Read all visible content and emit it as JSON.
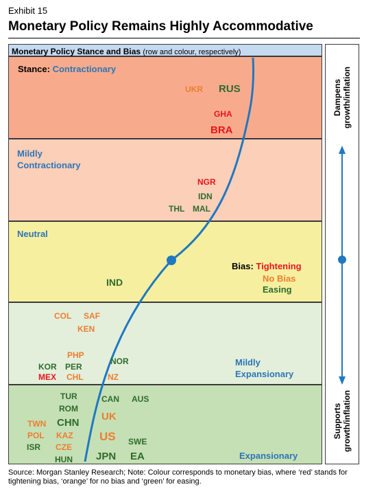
{
  "exhibit": "Exhibit 15",
  "title": "Monetary Policy Remains Highly Accommodative",
  "header": {
    "main": "Monetary Policy Stance and Bias",
    "sub": "(row and colour, respectively)"
  },
  "bands": {
    "contractionary": {
      "prefix": "Stance:",
      "label": "Contractionary"
    },
    "mildly_contractionary": {
      "line1": "Mildly",
      "line2": "Contractionary"
    },
    "neutral": {
      "label": "Neutral"
    },
    "mildly_expansionary": {
      "line1": "Mildly",
      "line2": "Expansionary"
    },
    "expansionary": {
      "label": "Expansionary"
    }
  },
  "legend": {
    "prefix": "Bias:",
    "tightening": "Tightening",
    "no_bias": "No Bias",
    "easing": "Easing"
  },
  "side": {
    "top": [
      "Dampens",
      "growth/inflation"
    ],
    "bottom": [
      "Supports",
      "growth/inflation"
    ]
  },
  "countries": {
    "UKR": "UKR",
    "RUS": "RUS",
    "GHA": "GHA",
    "BRA": "BRA",
    "NGR": "NGR",
    "IDN": "IDN",
    "THL": "THL",
    "MAL": "MAL",
    "IND": "IND",
    "COL": "COL",
    "SAF": "SAF",
    "KEN": "KEN",
    "PHP": "PHP",
    "KOR": "KOR",
    "PER": "PER",
    "NOR": "NOR",
    "MEX": "MEX",
    "CHL": "CHL",
    "NZ": "NZ",
    "TUR": "TUR",
    "ROM": "ROM",
    "CAN": "CAN",
    "AUS": "AUS",
    "UK": "UK",
    "TWN": "TWN",
    "CHN": "CHN",
    "POL": "POL",
    "KAZ": "KAZ",
    "US": "US",
    "SWE": "SWE",
    "ISR": "ISR",
    "CZE": "CZE",
    "HUN": "HUN",
    "JPN": "JPN",
    "EA": "EA"
  },
  "colors": {
    "tightening": "#e8141c",
    "no_bias": "#ed7d31",
    "easing": "#2e6b2e",
    "curve": "#1f78c1"
  },
  "note": "Source: Morgan Stanley Research; Note: Colour corresponds to monetary bias, where ‘red’ stands for tightening bias, ‘orange’ for no bias and ‘green’ for easing."
}
